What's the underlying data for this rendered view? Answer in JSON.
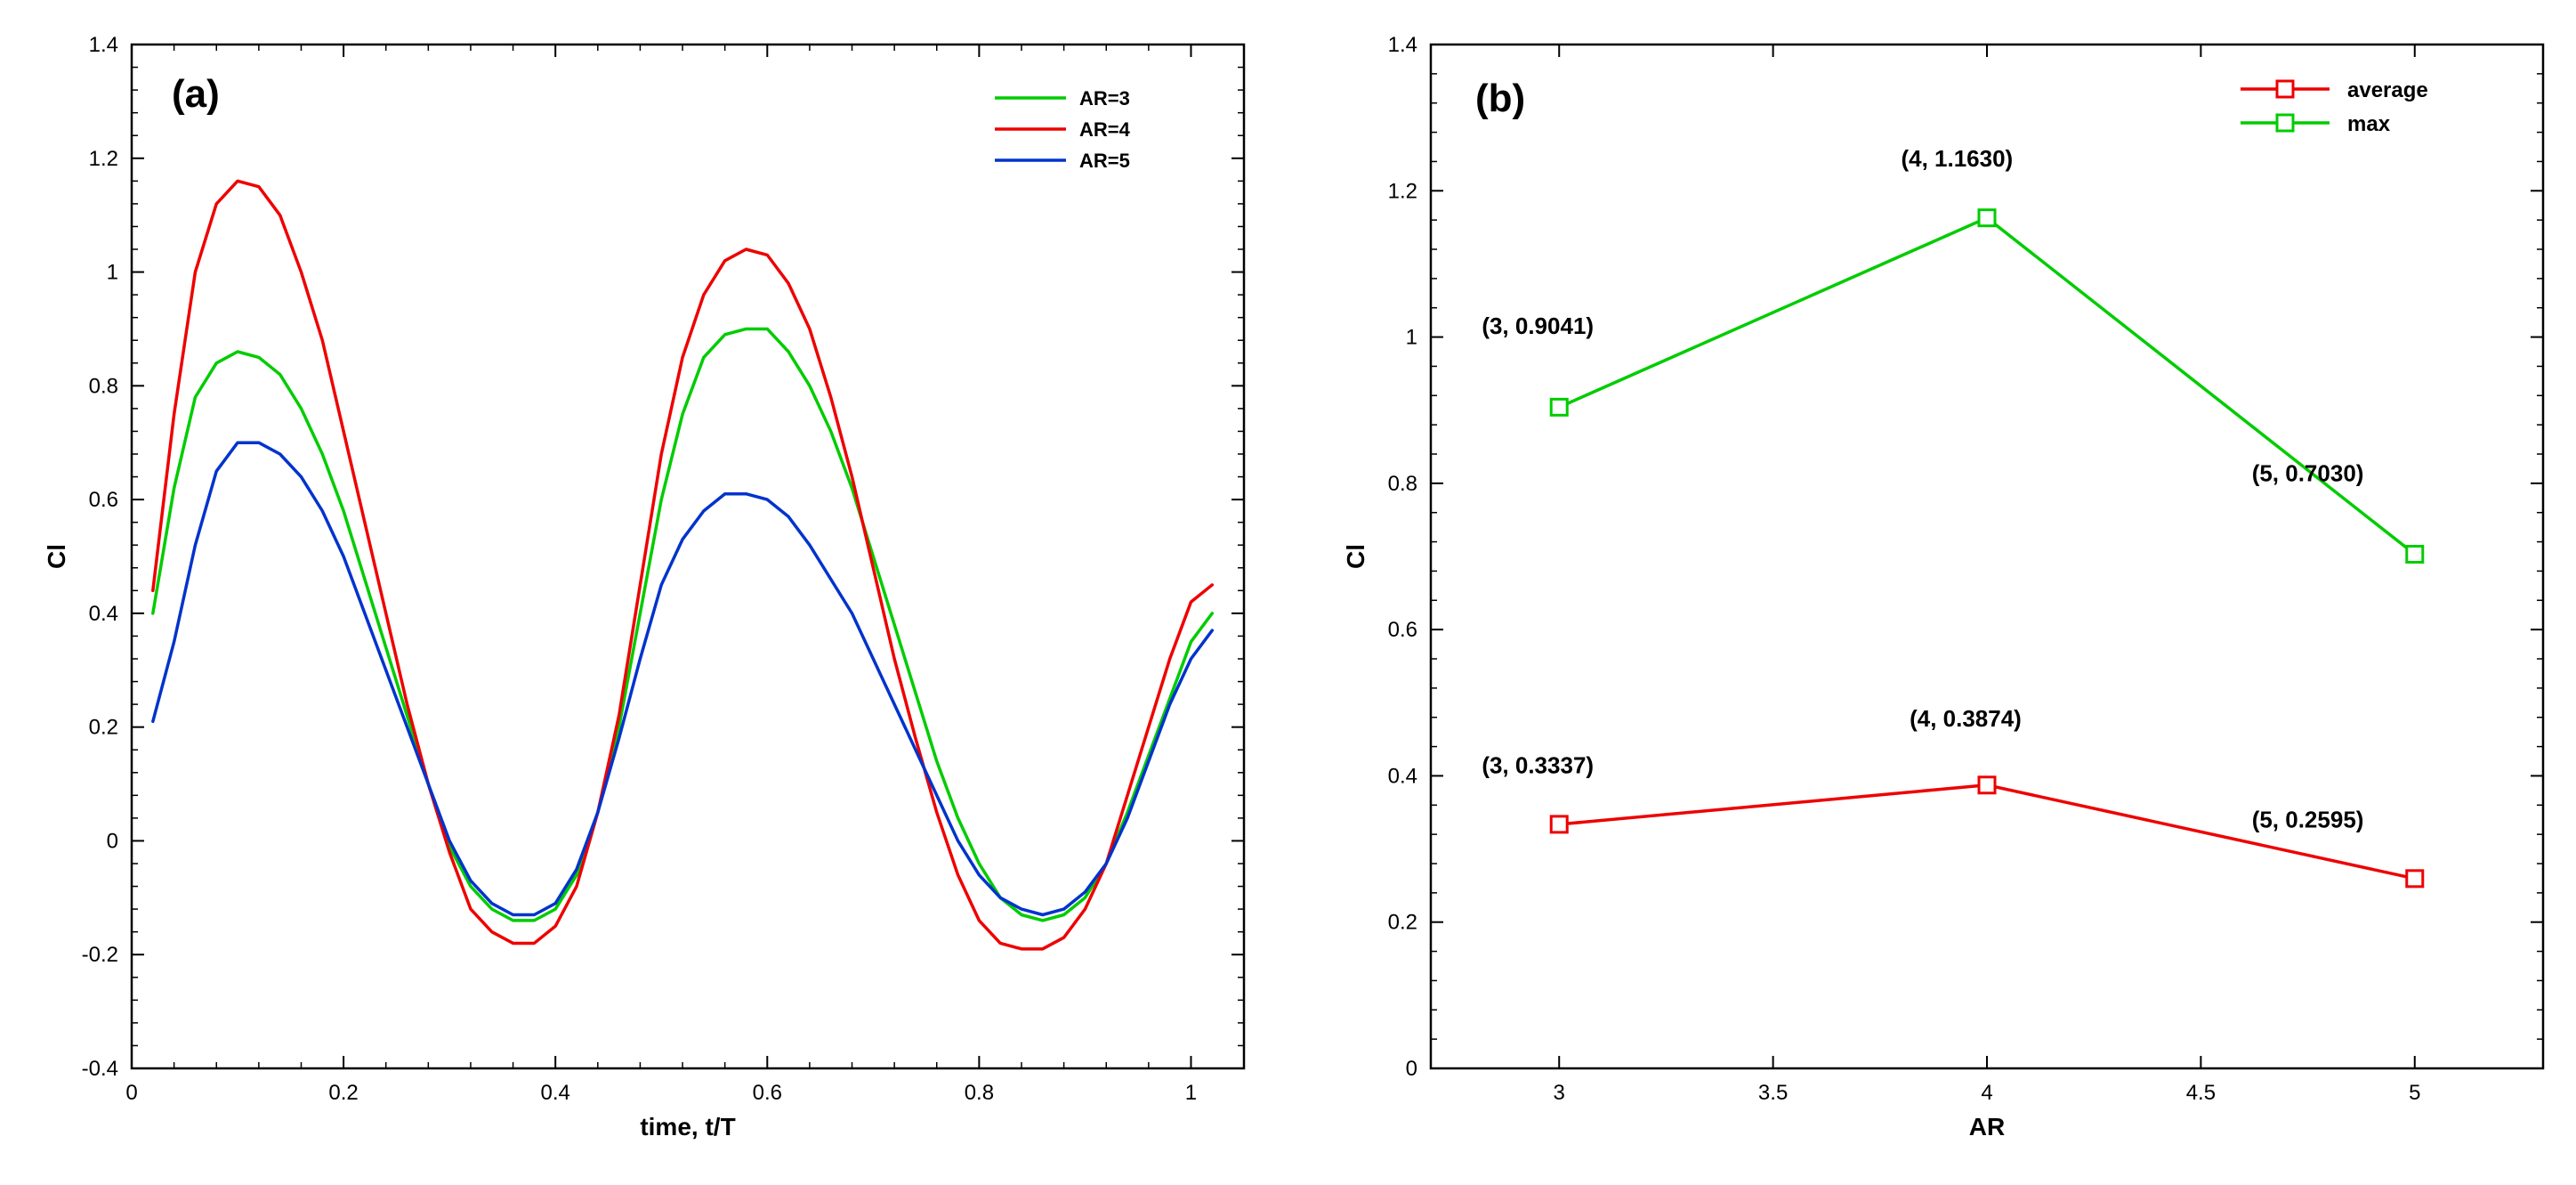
{
  "panelA": {
    "label": "(a)",
    "label_fontsize": 44,
    "label_fontweight": "bold",
    "type": "line",
    "xlabel": "time, t/T",
    "ylabel": "Cl",
    "axis_label_fontsize": 28,
    "axis_label_fontweight": "bold",
    "tick_fontsize": 24,
    "xlim": [
      0,
      1.05
    ],
    "ylim": [
      -0.4,
      1.4
    ],
    "xticks": [
      0,
      0.2,
      0.4,
      0.6,
      0.8,
      1
    ],
    "yticks": [
      -0.4,
      -0.2,
      0,
      0.2,
      0.4,
      0.6,
      0.8,
      1,
      1.2,
      1.4
    ],
    "minor_ticks_x": 4,
    "minor_ticks_y": 4,
    "line_width": 3.5,
    "border_color": "#000000",
    "border_width": 2.5,
    "background_color": "#ffffff",
    "legend": {
      "position": "top-right",
      "items": [
        "AR=3",
        "AR=4",
        "AR=5"
      ],
      "colors": [
        "#00cc00",
        "#ee0000",
        "#0033cc"
      ],
      "fontsize": 22,
      "fontweight": "bold",
      "line_width": 3.5
    },
    "series": [
      {
        "name": "AR=3",
        "color": "#00cc00",
        "x": [
          0.02,
          0.04,
          0.06,
          0.08,
          0.1,
          0.12,
          0.14,
          0.16,
          0.18,
          0.2,
          0.22,
          0.24,
          0.26,
          0.28,
          0.3,
          0.32,
          0.34,
          0.36,
          0.38,
          0.4,
          0.42,
          0.44,
          0.46,
          0.48,
          0.5,
          0.52,
          0.54,
          0.56,
          0.58,
          0.6,
          0.62,
          0.64,
          0.66,
          0.68,
          0.7,
          0.72,
          0.74,
          0.76,
          0.78,
          0.8,
          0.82,
          0.84,
          0.86,
          0.88,
          0.9,
          0.92,
          0.94,
          0.96,
          0.98,
          1.0,
          1.02
        ],
        "y": [
          0.4,
          0.62,
          0.78,
          0.84,
          0.86,
          0.85,
          0.82,
          0.76,
          0.68,
          0.58,
          0.46,
          0.34,
          0.22,
          0.1,
          -0.01,
          -0.08,
          -0.12,
          -0.14,
          -0.14,
          -0.12,
          -0.06,
          0.05,
          0.2,
          0.4,
          0.6,
          0.75,
          0.85,
          0.89,
          0.9,
          0.9,
          0.86,
          0.8,
          0.72,
          0.62,
          0.5,
          0.38,
          0.26,
          0.14,
          0.04,
          -0.04,
          -0.1,
          -0.13,
          -0.14,
          -0.13,
          -0.1,
          -0.04,
          0.05,
          0.15,
          0.25,
          0.35,
          0.4
        ]
      },
      {
        "name": "AR=4",
        "color": "#ee0000",
        "x": [
          0.02,
          0.04,
          0.06,
          0.08,
          0.1,
          0.12,
          0.14,
          0.16,
          0.18,
          0.2,
          0.22,
          0.24,
          0.26,
          0.28,
          0.3,
          0.32,
          0.34,
          0.36,
          0.38,
          0.4,
          0.42,
          0.44,
          0.46,
          0.48,
          0.5,
          0.52,
          0.54,
          0.56,
          0.58,
          0.6,
          0.62,
          0.64,
          0.66,
          0.68,
          0.7,
          0.72,
          0.74,
          0.76,
          0.78,
          0.8,
          0.82,
          0.84,
          0.86,
          0.88,
          0.9,
          0.92,
          0.94,
          0.96,
          0.98,
          1.0,
          1.02
        ],
        "y": [
          0.44,
          0.75,
          1.0,
          1.12,
          1.16,
          1.15,
          1.1,
          1.0,
          0.88,
          0.72,
          0.56,
          0.4,
          0.24,
          0.1,
          -0.02,
          -0.12,
          -0.16,
          -0.18,
          -0.18,
          -0.15,
          -0.08,
          0.05,
          0.22,
          0.45,
          0.68,
          0.85,
          0.96,
          1.02,
          1.04,
          1.03,
          0.98,
          0.9,
          0.78,
          0.64,
          0.48,
          0.32,
          0.18,
          0.05,
          -0.06,
          -0.14,
          -0.18,
          -0.19,
          -0.19,
          -0.17,
          -0.12,
          -0.04,
          0.08,
          0.2,
          0.32,
          0.42,
          0.45
        ]
      },
      {
        "name": "AR=5",
        "color": "#0033cc",
        "x": [
          0.02,
          0.04,
          0.06,
          0.08,
          0.1,
          0.12,
          0.14,
          0.16,
          0.18,
          0.2,
          0.22,
          0.24,
          0.26,
          0.28,
          0.3,
          0.32,
          0.34,
          0.36,
          0.38,
          0.4,
          0.42,
          0.44,
          0.46,
          0.48,
          0.5,
          0.52,
          0.54,
          0.56,
          0.58,
          0.6,
          0.62,
          0.64,
          0.66,
          0.68,
          0.7,
          0.72,
          0.74,
          0.76,
          0.78,
          0.8,
          0.82,
          0.84,
          0.86,
          0.88,
          0.9,
          0.92,
          0.94,
          0.96,
          0.98,
          1.0,
          1.02
        ],
        "y": [
          0.21,
          0.35,
          0.52,
          0.65,
          0.7,
          0.7,
          0.68,
          0.64,
          0.58,
          0.5,
          0.4,
          0.3,
          0.2,
          0.1,
          0.0,
          -0.07,
          -0.11,
          -0.13,
          -0.13,
          -0.11,
          -0.05,
          0.05,
          0.18,
          0.32,
          0.45,
          0.53,
          0.58,
          0.61,
          0.61,
          0.6,
          0.57,
          0.52,
          0.46,
          0.4,
          0.32,
          0.24,
          0.16,
          0.08,
          0.0,
          -0.06,
          -0.1,
          -0.12,
          -0.13,
          -0.12,
          -0.09,
          -0.04,
          0.04,
          0.14,
          0.24,
          0.32,
          0.37
        ]
      }
    ]
  },
  "panelB": {
    "label": "(b)",
    "label_fontsize": 44,
    "label_fontweight": "bold",
    "type": "line-scatter",
    "xlabel": "AR",
    "ylabel": "Cl",
    "axis_label_fontsize": 28,
    "axis_label_fontweight": "bold",
    "tick_fontsize": 24,
    "xlim": [
      2.7,
      5.3
    ],
    "ylim": [
      0,
      1.4
    ],
    "xticks": [
      3,
      3.5,
      4,
      4.5,
      5
    ],
    "yticks": [
      0,
      0.2,
      0.4,
      0.6,
      0.8,
      1,
      1.2,
      1.4
    ],
    "minor_ticks_x": 0,
    "minor_ticks_y": 4,
    "line_width": 3.5,
    "marker_size": 18,
    "marker_line_width": 3,
    "border_color": "#000000",
    "border_width": 2.5,
    "background_color": "#ffffff",
    "annotation_fontsize": 26,
    "annotation_fontweight": "bold",
    "legend": {
      "position": "top-right",
      "items": [
        "average",
        "max"
      ],
      "colors": [
        "#ee0000",
        "#00cc00"
      ],
      "fontsize": 24,
      "fontweight": "bold",
      "line_width": 3.5,
      "marker_size": 18
    },
    "series": [
      {
        "name": "average",
        "color": "#ee0000",
        "x": [
          3,
          4,
          5
        ],
        "y": [
          0.3337,
          0.3874,
          0.2595
        ],
        "annotations": [
          "(3, 0.3337)",
          "(4, 0.3874)",
          "(5, 0.2595)"
        ],
        "annotation_pos": [
          [
            -0.05,
            0.07
          ],
          [
            -0.05,
            0.08
          ],
          [
            -0.25,
            0.07
          ]
        ]
      },
      {
        "name": "max",
        "color": "#00cc00",
        "x": [
          3,
          4,
          5
        ],
        "y": [
          0.9041,
          1.163,
          0.703
        ],
        "annotations": [
          "(3, 0.9041)",
          "(4, 1.1630)",
          "(5, 0.7030)"
        ],
        "annotation_pos": [
          [
            -0.05,
            0.1
          ],
          [
            -0.07,
            0.07
          ],
          [
            -0.25,
            0.1
          ]
        ]
      }
    ]
  }
}
